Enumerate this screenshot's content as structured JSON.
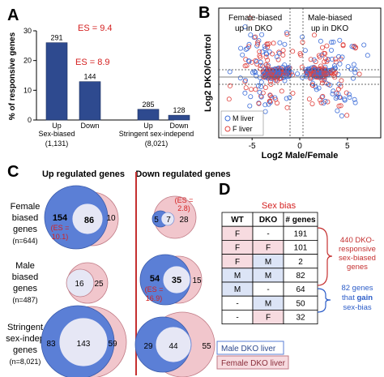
{
  "panels": {
    "a": "A",
    "b": "B",
    "c": "C",
    "d": "D"
  },
  "colors": {
    "bar_fill": "#2e4a8f",
    "es_red": "#d42020",
    "blue": "#3f6fd9",
    "red": "#e0433f",
    "pink": "#f2c1c8",
    "venn_blue": "#5b7fd6",
    "venn_pink": "#f1c6cc",
    "divider": "#c53030"
  },
  "chart_data": [
    {
      "type": "bar",
      "panel": "A",
      "ylabel": "% of responsive genes",
      "ylim": [
        0,
        30
      ],
      "yticks": [
        0,
        10,
        20,
        30
      ],
      "groups": [
        {
          "label": "Sex-biased",
          "n": "(1,131)"
        },
        {
          "label": "Stringent sex-independ",
          "n": "(8,021)"
        }
      ],
      "categories": [
        "Up",
        "Down",
        "Up",
        "Down"
      ],
      "values": [
        26.0,
        12.9,
        3.6,
        1.6
      ],
      "data_labels": [
        "291",
        "144",
        "285",
        "128"
      ],
      "annotations": [
        "ES = 9.4",
        "ES = 8.9"
      ]
    },
    {
      "type": "scatter",
      "panel": "B",
      "xlabel": "Log2 Male/Female",
      "ylabel": "Log2 DKO/Control",
      "x_ticks": [
        -5,
        0,
        5
      ],
      "xlim": [
        -8.5,
        8.5
      ],
      "ylim": [
        -4.5,
        4.5
      ],
      "annotations": [
        "Female-biased up in DKO",
        "Male-biased up in DKO"
      ],
      "series": [
        {
          "name": "M liver",
          "color": "#3f6fd9"
        },
        {
          "name": "F liver",
          "color": "#e0433f"
        }
      ]
    }
  ],
  "venn": {
    "col_up": "Up regulated genes",
    "col_down": "Down regulated genes",
    "rows": [
      {
        "label1": "Female",
        "label2": "biased",
        "label3": "genes",
        "n": "(n=644)"
      },
      {
        "label1": "Male",
        "label2": "biased",
        "label3": "genes",
        "n": "(n=487)"
      },
      {
        "label1": "Stringent",
        "label2": "sex-indep",
        "label3": "genes",
        "n": "(n=8,021)"
      }
    ],
    "female_up": {
      "left": "154",
      "mid": "86",
      "right": "10",
      "es1": "(ES =",
      "es2": "10.1)"
    },
    "female_down": {
      "left": "5",
      "mid": "7",
      "right": "28",
      "es1": "(ES =",
      "es2": "2.8)"
    },
    "male_up": {
      "mid": "16",
      "right": "25"
    },
    "male_down": {
      "left": "54",
      "mid": "35",
      "right": "15",
      "es1": "(ES =",
      "es2": "16.9)"
    },
    "strict_up": {
      "left": "83",
      "mid": "143",
      "right": "59"
    },
    "strict_down": {
      "left": "29",
      "mid": "44",
      "right": "55"
    },
    "legend_male": "Male DKO liver",
    "legend_female": "Female DKO liver"
  },
  "table": {
    "title": "Sex bias",
    "headers": [
      "WT",
      "DKO",
      "# genes"
    ],
    "rows": [
      [
        "F",
        "-",
        "191"
      ],
      [
        "F",
        "F",
        "101"
      ],
      [
        "F",
        "M",
        "2"
      ],
      [
        "M",
        "M",
        "82"
      ],
      [
        "M",
        "-",
        "64"
      ],
      [
        "-",
        "M",
        "50"
      ],
      [
        "-",
        "F",
        "32"
      ]
    ],
    "note1": [
      "440 DKO-",
      "responsive",
      "sex-biased",
      "genes"
    ],
    "note2_a": "82 genes",
    "note2_b_pre": "that ",
    "note2_b_bold": "gain",
    "note2_c": "sex-bias"
  }
}
